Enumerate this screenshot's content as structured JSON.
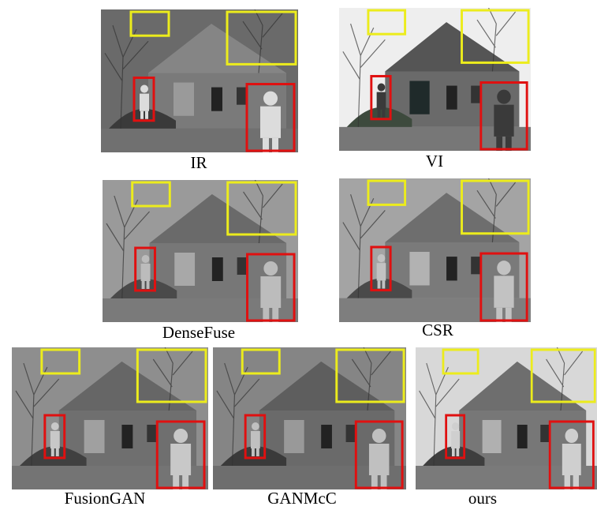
{
  "figure": {
    "panels": [
      {
        "label": "IR"
      },
      {
        "label": "VI"
      },
      {
        "label": "DenseFuse"
      },
      {
        "label": "CSR"
      },
      {
        "label": "FusionGAN"
      },
      {
        "label": "GANMcC"
      },
      {
        "label": "ours"
      }
    ]
  }
}
